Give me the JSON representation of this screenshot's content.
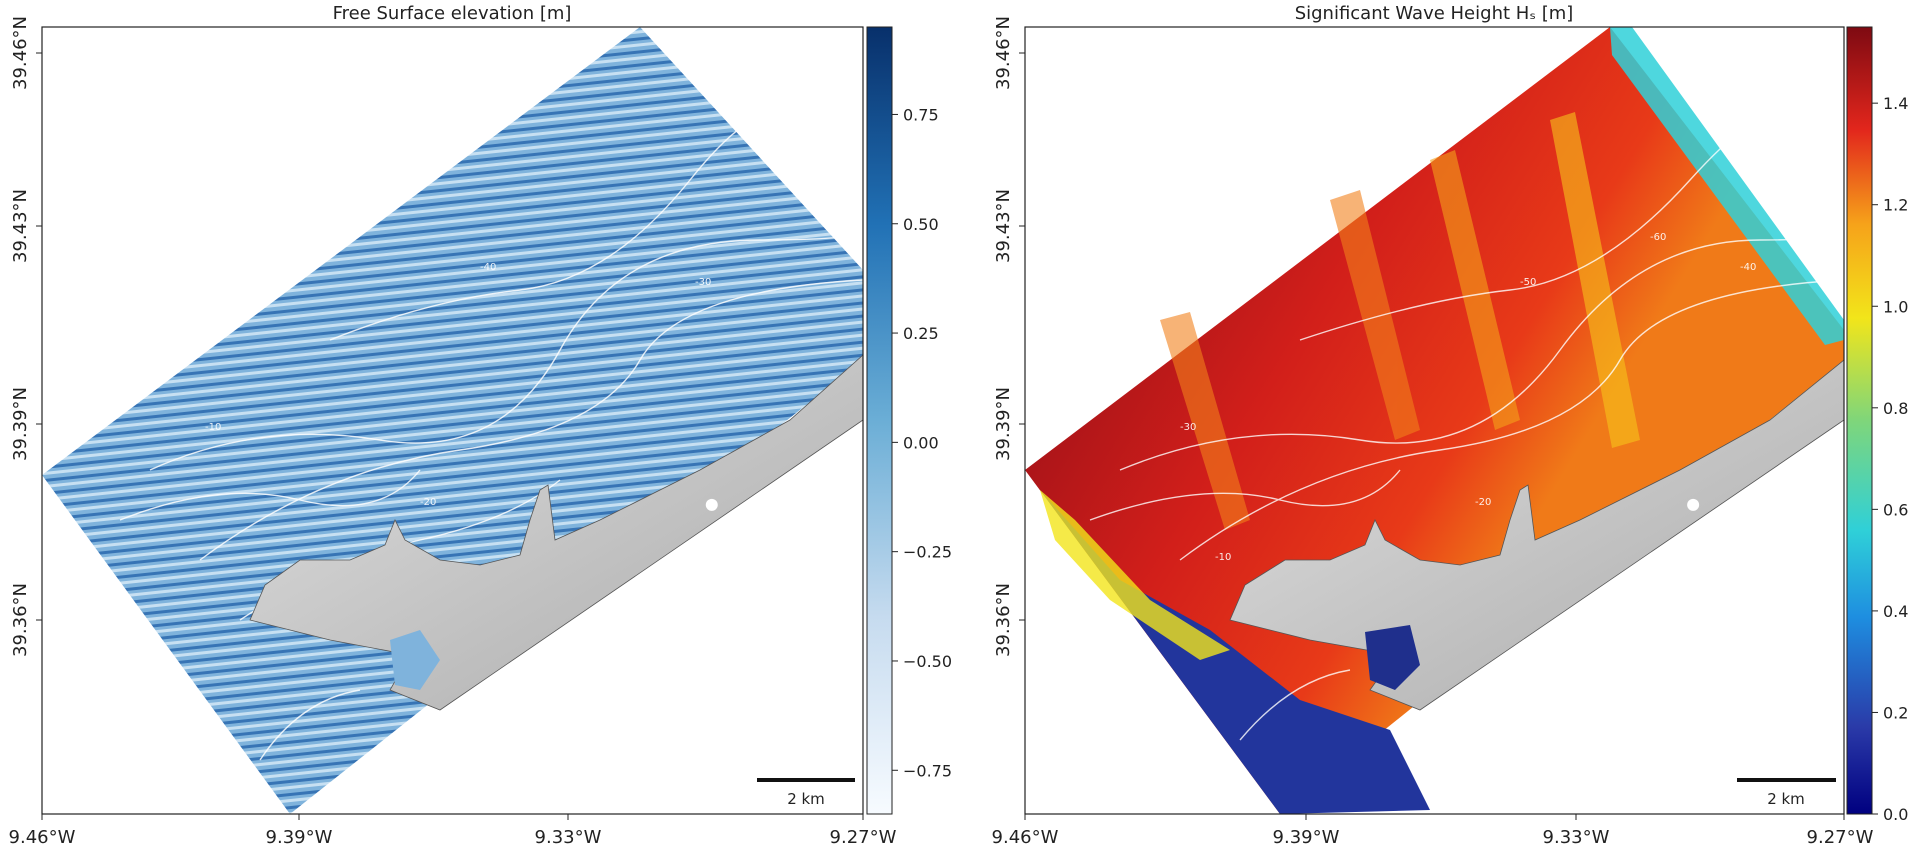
{
  "panels": [
    {
      "title": "Free Surface elevation [m]",
      "x_ticks": [
        "9.46°W",
        "9.39°W",
        "9.33°W",
        "9.27°W"
      ],
      "y_ticks": [
        "39.46°N",
        "39.43°N",
        "39.39°N",
        "39.36°N"
      ],
      "scalebar_label": "2 km",
      "colorbar_ticks": [
        "0.75",
        "0.50",
        "0.25",
        "0.00",
        "−0.25",
        "−0.50",
        "−0.75"
      ],
      "contour_labels": [
        "-30",
        "-20",
        "-40",
        "-10"
      ]
    },
    {
      "title": "Significant Wave Height Hₛ [m]",
      "x_ticks": [
        "9.46°W",
        "9.39°W",
        "9.33°W",
        "9.27°W"
      ],
      "y_ticks": [
        "39.46°N",
        "39.43°N",
        "39.39°N",
        "39.36°N"
      ],
      "scalebar_label": "2 km",
      "colorbar_ticks": [
        "1.4",
        "1.2",
        "1.0",
        "0.8",
        "0.6",
        "0.4",
        "0.2",
        "0.0"
      ],
      "contour_labels": [
        "-60",
        "-50",
        "-40",
        "-30",
        "-20",
        "-10"
      ]
    }
  ],
  "chart_data": [
    {
      "type": "heatmap",
      "title": "Free Surface elevation [m]",
      "xlabel": "",
      "ylabel": "",
      "xlim": [
        "9.46°W",
        "9.27°W"
      ],
      "ylim": [
        "39.33°N",
        "39.47°N"
      ],
      "colorbar": {
        "min": -0.85,
        "max": 0.95,
        "ticks": [
          0.75,
          0.5,
          0.25,
          0.0,
          -0.25,
          -0.5,
          -0.75
        ],
        "colormap": "Blues"
      },
      "colors": {
        "wave_base": "#7fb3dc",
        "crest": "#1f5fa8",
        "trough": "#d9ebf7",
        "land": "#c8c8c8"
      },
      "markers": [
        {
          "lon": -9.305,
          "lat": 39.385,
          "color": "#ffffff"
        }
      ]
    },
    {
      "type": "heatmap",
      "title": "Significant Wave Height Hₛ [m]",
      "xlabel": "",
      "ylabel": "",
      "xlim": [
        "9.46°W",
        "9.27°W"
      ],
      "ylim": [
        "39.33°N",
        "39.47°N"
      ],
      "colorbar": {
        "min": 0.0,
        "max": 1.55,
        "ticks": [
          1.4,
          1.2,
          1.0,
          0.8,
          0.6,
          0.4,
          0.2,
          0.0
        ],
        "colormap": "jet"
      },
      "colors": {
        "high": "#a3141c",
        "mid": "#e2261c",
        "low": "#22359c",
        "land": "#c8c8c8"
      },
      "markers": [
        {
          "lon": -9.305,
          "lat": 39.385,
          "color": "#ffffff"
        }
      ]
    }
  ]
}
